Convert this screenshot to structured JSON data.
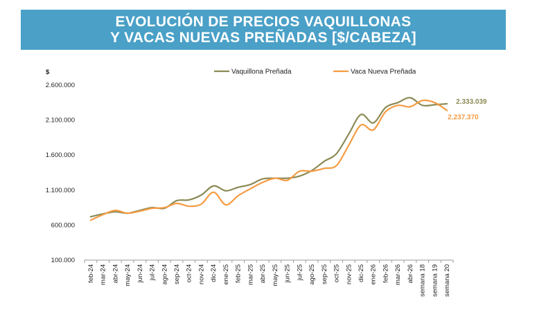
{
  "chart_data": {
    "type": "line",
    "title_line1": "EVOLUCIÓN DE PRECIOS VAQUILLONAS",
    "title_line2": "Y VACAS NUEVAS PREÑADAS [$/CABEZA]",
    "ylabel": "$",
    "ylim": [
      100000,
      2600000
    ],
    "yticks": [
      "100.000",
      "600.000",
      "1.100.000",
      "1.600.000",
      "2.100.000",
      "2.600.000"
    ],
    "ytick_values": [
      100000,
      600000,
      1100000,
      1600000,
      2100000,
      2600000
    ],
    "grid": false,
    "legend_position": "top",
    "categories": [
      "feb-24",
      "mar-24",
      "abr-24",
      "may-24",
      "jun-24",
      "jul-24",
      "ago-24",
      "sep-24",
      "oct-24",
      "nov-24",
      "dic-24",
      "ene-25",
      "feb-25",
      "mar-25",
      "abr-25",
      "may-25",
      "jun-25",
      "jul-25",
      "ago-25",
      "sep-25",
      "oct-25",
      "nov-25",
      "dic-25",
      "ene-26",
      "feb-26",
      "mar-26",
      "abr-26",
      "semana 18",
      "semana 19",
      "semana 20"
    ],
    "series": [
      {
        "name": "Vaquillona Preñada",
        "color": "#8b8a55",
        "values": [
          720000,
          760000,
          790000,
          770000,
          810000,
          850000,
          840000,
          950000,
          960000,
          1030000,
          1160000,
          1090000,
          1140000,
          1180000,
          1260000,
          1270000,
          1270000,
          1300000,
          1380000,
          1510000,
          1620000,
          1900000,
          2180000,
          2060000,
          2280000,
          2350000,
          2420000,
          2310000,
          2320000,
          2333039
        ],
        "end_label": "2.333.039"
      },
      {
        "name": "Vaca Nueva Preñada",
        "color": "#f59b42",
        "values": [
          670000,
          750000,
          810000,
          770000,
          800000,
          840000,
          850000,
          910000,
          870000,
          900000,
          1070000,
          890000,
          1020000,
          1120000,
          1210000,
          1270000,
          1240000,
          1370000,
          1370000,
          1410000,
          1450000,
          1740000,
          2030000,
          1960000,
          2220000,
          2310000,
          2290000,
          2380000,
          2350000,
          2237370
        ],
        "end_label": "2.237.370"
      }
    ]
  }
}
